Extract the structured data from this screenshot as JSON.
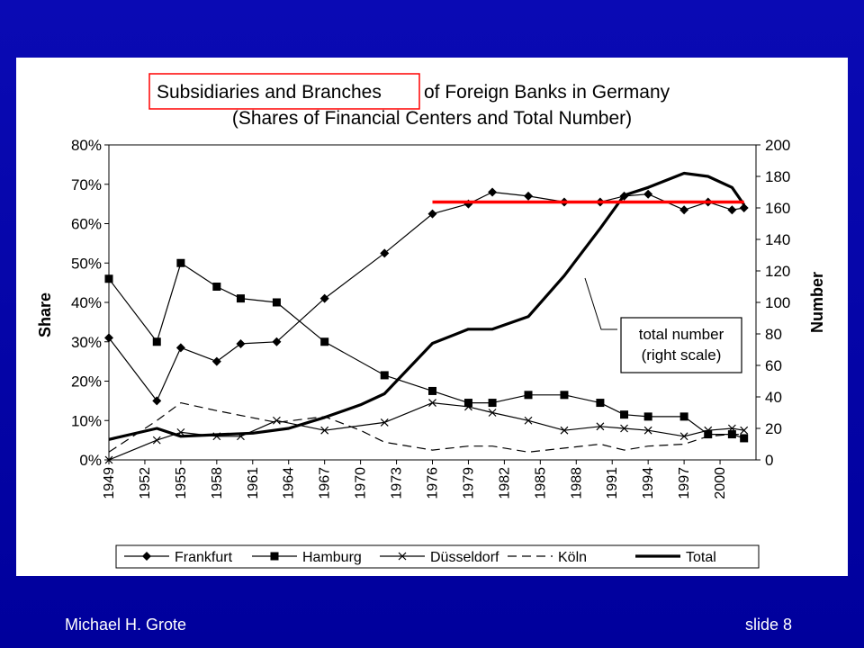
{
  "footer": {
    "author": "Michael H. Grote",
    "slide": "slide 8"
  },
  "chart_data": {
    "type": "line",
    "title_line1_highlight": "Subsidiaries and Branches",
    "title_line1_rest": "of Foreign Banks in Germany",
    "title_line2": "(Shares of Financial Centers and Total Number)",
    "ylabel": "Share",
    "y2label": "Number",
    "ylim": [
      0,
      0.8
    ],
    "y2lim": [
      0,
      200
    ],
    "y_ticks": [
      "0%",
      "10%",
      "20%",
      "30%",
      "40%",
      "50%",
      "60%",
      "70%",
      "80%"
    ],
    "y2_ticks": [
      "0",
      "20",
      "40",
      "60",
      "80",
      "100",
      "120",
      "140",
      "160",
      "180",
      "200"
    ],
    "x_ticks": [
      "1949",
      "1952",
      "1955",
      "1958",
      "1961",
      "1964",
      "1967",
      "1970",
      "1973",
      "1976",
      "1979",
      "1982",
      "1985",
      "1988",
      "1991",
      "1994",
      "1997",
      "2000"
    ],
    "x_range": [
      1949,
      2003
    ],
    "annotation": {
      "line1": "total number",
      "line2": "(right scale)"
    },
    "reference_line": {
      "value": 0.655,
      "from": 1976,
      "to": 2002,
      "color": "#ff0000"
    },
    "series": [
      {
        "name": "Frankfurt",
        "axis": "left",
        "marker": "diamond",
        "dash": "solid",
        "width": 1.2,
        "points": [
          [
            1949,
            0.31
          ],
          [
            1953,
            0.15
          ],
          [
            1955,
            0.285
          ],
          [
            1958,
            0.25
          ],
          [
            1960,
            0.295
          ],
          [
            1963,
            0.3
          ],
          [
            1967,
            0.41
          ],
          [
            1972,
            0.525
          ],
          [
            1976,
            0.625
          ],
          [
            1979,
            0.65
          ],
          [
            1981,
            0.68
          ],
          [
            1984,
            0.67
          ],
          [
            1987,
            0.655
          ],
          [
            1990,
            0.655
          ],
          [
            1992,
            0.67
          ],
          [
            1994,
            0.675
          ],
          [
            1997,
            0.635
          ],
          [
            1999,
            0.655
          ],
          [
            2001,
            0.635
          ],
          [
            2002,
            0.64
          ]
        ]
      },
      {
        "name": "Hamburg",
        "axis": "left",
        "marker": "square",
        "dash": "solid",
        "width": 1.2,
        "points": [
          [
            1949,
            0.46
          ],
          [
            1953,
            0.3
          ],
          [
            1955,
            0.5
          ],
          [
            1958,
            0.44
          ],
          [
            1960,
            0.41
          ],
          [
            1963,
            0.4
          ],
          [
            1967,
            0.3
          ],
          [
            1972,
            0.215
          ],
          [
            1976,
            0.175
          ],
          [
            1979,
            0.145
          ],
          [
            1981,
            0.145
          ],
          [
            1984,
            0.165
          ],
          [
            1987,
            0.165
          ],
          [
            1990,
            0.145
          ],
          [
            1992,
            0.115
          ],
          [
            1994,
            0.11
          ],
          [
            1997,
            0.11
          ],
          [
            1999,
            0.065
          ],
          [
            2001,
            0.065
          ],
          [
            2002,
            0.055
          ]
        ]
      },
      {
        "name": "Düsseldorf",
        "axis": "left",
        "marker": "x",
        "dash": "solid",
        "width": 1.2,
        "points": [
          [
            1949,
            0.0
          ],
          [
            1953,
            0.05
          ],
          [
            1955,
            0.07
          ],
          [
            1958,
            0.06
          ],
          [
            1960,
            0.06
          ],
          [
            1963,
            0.1
          ],
          [
            1967,
            0.075
          ],
          [
            1972,
            0.095
          ],
          [
            1976,
            0.145
          ],
          [
            1979,
            0.135
          ],
          [
            1981,
            0.12
          ],
          [
            1984,
            0.1
          ],
          [
            1987,
            0.075
          ],
          [
            1990,
            0.085
          ],
          [
            1992,
            0.08
          ],
          [
            1994,
            0.075
          ],
          [
            1997,
            0.06
          ],
          [
            1999,
            0.075
          ],
          [
            2001,
            0.08
          ],
          [
            2002,
            0.075
          ]
        ]
      },
      {
        "name": "Köln",
        "axis": "left",
        "marker": "none",
        "dash": "dashed",
        "width": 1.2,
        "points": [
          [
            1949,
            0.02
          ],
          [
            1953,
            0.1
          ],
          [
            1955,
            0.145
          ],
          [
            1958,
            0.125
          ],
          [
            1963,
            0.095
          ],
          [
            1967,
            0.11
          ],
          [
            1970,
            0.075
          ],
          [
            1972,
            0.045
          ],
          [
            1976,
            0.025
          ],
          [
            1979,
            0.035
          ],
          [
            1981,
            0.035
          ],
          [
            1984,
            0.02
          ],
          [
            1987,
            0.03
          ],
          [
            1990,
            0.04
          ],
          [
            1992,
            0.025
          ],
          [
            1994,
            0.035
          ],
          [
            1997,
            0.04
          ],
          [
            1999,
            0.06
          ],
          [
            2001,
            0.065
          ],
          [
            2002,
            0.065
          ]
        ]
      },
      {
        "name": "Total",
        "axis": "right",
        "marker": "none",
        "dash": "solid",
        "width": 3.2,
        "points": [
          [
            1949,
            13
          ],
          [
            1953,
            20
          ],
          [
            1955,
            15
          ],
          [
            1958,
            16
          ],
          [
            1961,
            17
          ],
          [
            1964,
            20
          ],
          [
            1967,
            27
          ],
          [
            1970,
            35
          ],
          [
            1972,
            42
          ],
          [
            1976,
            74
          ],
          [
            1979,
            83
          ],
          [
            1981,
            83
          ],
          [
            1984,
            91
          ],
          [
            1987,
            117
          ],
          [
            1990,
            147
          ],
          [
            1992,
            168
          ],
          [
            1994,
            173
          ],
          [
            1997,
            182
          ],
          [
            1999,
            180
          ],
          [
            2001,
            173
          ],
          [
            2002,
            162
          ]
        ]
      }
    ],
    "legend": {
      "placement": "bottom",
      "entries": [
        "Frankfurt",
        "Hamburg",
        "Düsseldorf",
        "Köln",
        "Total"
      ]
    }
  }
}
